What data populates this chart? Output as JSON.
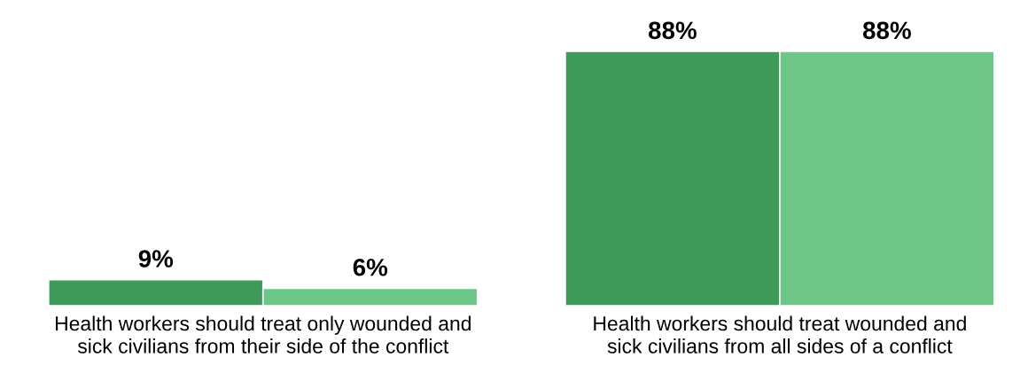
{
  "chart_data": {
    "type": "bar",
    "categories": [
      "Health workers should treat only wounded and sick civilians from their side of the conflict",
      "Health workers should treat wounded and sick civilians from all sides of a conflict"
    ],
    "series": [
      {
        "color": "#3d9a5a",
        "values": [
          9,
          88
        ],
        "value_labels": [
          "9%",
          "88%"
        ]
      },
      {
        "color": "#6cc687",
        "values": [
          6,
          88
        ],
        "value_labels": [
          "6%",
          "88%"
        ]
      }
    ]
  }
}
